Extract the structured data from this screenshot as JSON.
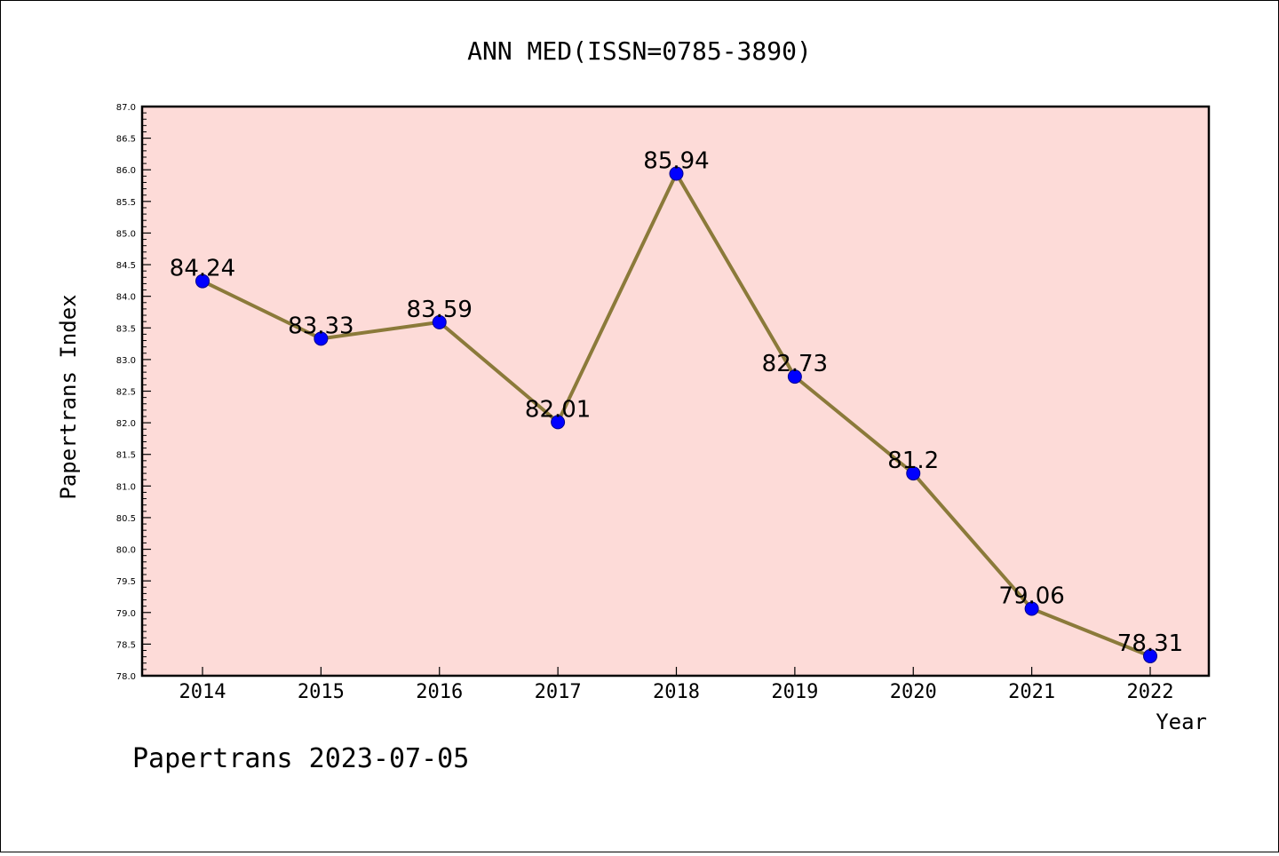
{
  "chart_data": {
    "type": "line",
    "title": "ANN MED(ISSN=0785-3890)",
    "xlabel": "Year",
    "ylabel": "Papertrans Index",
    "categories": [
      "2014",
      "2015",
      "2016",
      "2017",
      "2018",
      "2019",
      "2020",
      "2021",
      "2022"
    ],
    "values": [
      84.24,
      83.33,
      83.59,
      82.01,
      85.94,
      82.73,
      81.2,
      79.06,
      78.31
    ],
    "data_labels": [
      "84.24",
      "83.33",
      "83.59",
      "82.01",
      "85.94",
      "82.73",
      "81.2",
      "79.06",
      "78.31"
    ],
    "ylim": [
      78.0,
      87.0
    ],
    "yticks": [
      "78.0",
      "78.5",
      "79.0",
      "79.5",
      "80.0",
      "80.5",
      "81.0",
      "81.5",
      "82.0",
      "82.5",
      "83.0",
      "83.5",
      "84.0",
      "84.5",
      "85.0",
      "85.5",
      "86.0",
      "86.5",
      "87.0"
    ],
    "grid": false,
    "legend": "none",
    "colors": {
      "plot_background": "#fddbd8",
      "line": "#8b7a3a",
      "marker": "#0000ff"
    }
  },
  "footer": {
    "text": "Papertrans 2023-07-05"
  }
}
